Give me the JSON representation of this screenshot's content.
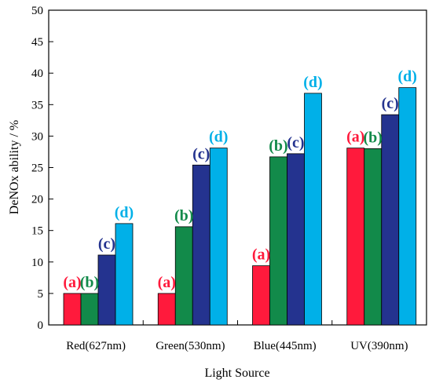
{
  "chart_data": {
    "type": "bar",
    "title": "",
    "xlabel": "Light Source",
    "ylabel": "DeNOx ability / %",
    "ylim": [
      0,
      50
    ],
    "yticks": [
      0,
      5,
      10,
      15,
      20,
      25,
      30,
      35,
      40,
      45,
      50
    ],
    "grid": false,
    "legend": "none",
    "categories": [
      "Red(627nm)",
      "Green(530nm)",
      "Blue(445nm)",
      "UV(390nm)"
    ],
    "series": [
      {
        "name": "(a)",
        "color": "#ff1a3c",
        "values": [
          5.0,
          5.0,
          9.4,
          28.1
        ]
      },
      {
        "name": "(b)",
        "color": "#128a4a",
        "values": [
          5.0,
          15.6,
          26.7,
          28.0
        ]
      },
      {
        "name": "(c)",
        "color": "#24338f",
        "values": [
          11.1,
          25.4,
          27.2,
          33.4
        ]
      },
      {
        "name": "(d)",
        "color": "#00b0e8",
        "values": [
          16.1,
          28.1,
          36.8,
          37.7
        ]
      }
    ]
  }
}
